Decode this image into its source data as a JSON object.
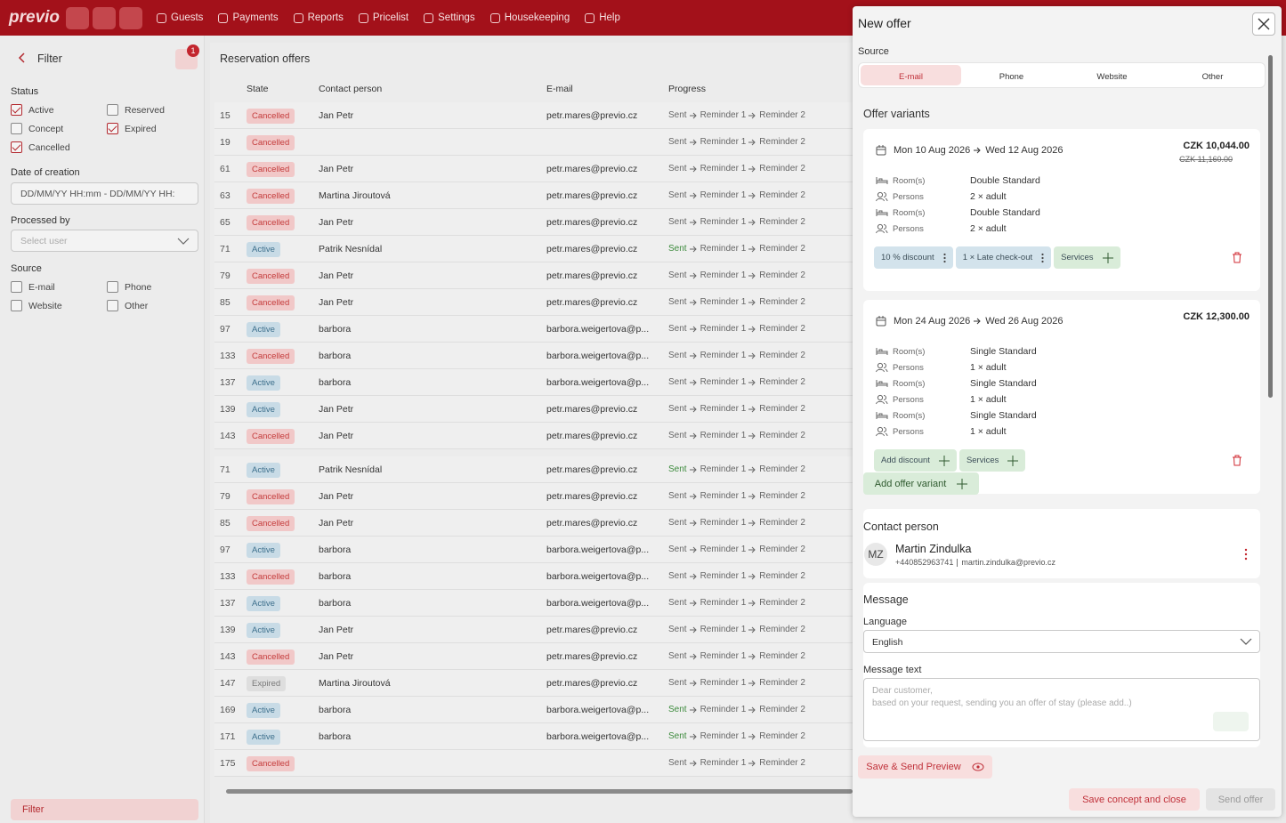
{
  "nav": {
    "logo": "previo",
    "items": [
      "Guests",
      "Payments",
      "Reports",
      "Pricelist",
      "Settings",
      "Housekeeping",
      "Help"
    ]
  },
  "sidebar": {
    "title": "Filter",
    "badge": "1",
    "status_label": "Status",
    "status_options": [
      {
        "label": "Active",
        "checked": true
      },
      {
        "label": "Reserved",
        "checked": false
      },
      {
        "label": "Concept",
        "checked": false
      },
      {
        "label": "Expired",
        "checked": true
      },
      {
        "label": "Cancelled",
        "checked": true
      }
    ],
    "date_label": "Date of creation",
    "date_placeholder": "DD/MM/YY HH:mm  -  DD/MM/YY HH:",
    "processed_label": "Processed by",
    "processed_placeholder": "Select user",
    "source_label": "Source",
    "source_options": [
      {
        "label": "E-mail",
        "checked": false
      },
      {
        "label": "Phone",
        "checked": false
      },
      {
        "label": "Website",
        "checked": false
      },
      {
        "label": "Other",
        "checked": false
      }
    ],
    "filter_button": "Filter"
  },
  "table": {
    "title": "Reservation offers",
    "columns": [
      "State",
      "Contact person",
      "E-mail",
      "Progress"
    ],
    "progress_steps": [
      "Sent",
      "Reminder 1",
      "Reminder 2"
    ],
    "state_styles": {
      "Cancelled": {
        "bg": "#f1c8c8",
        "fg": "#c43b3b"
      },
      "Active": {
        "bg": "#c8dbe6",
        "fg": "#3d6f8c"
      },
      "Expired": {
        "bg": "#dedede",
        "fg": "#7a7a7a"
      }
    },
    "rows": [
      {
        "id": 15,
        "state": "Cancelled",
        "contact": "Jan Petr",
        "email": "petr.mares@previo.cz",
        "sent_done": false
      },
      {
        "id": 19,
        "state": "Cancelled",
        "contact": null,
        "email": null,
        "sent_done": false
      },
      {
        "id": 61,
        "state": "Cancelled",
        "contact": "Jan Petr",
        "email": "petr.mares@previo.cz",
        "sent_done": false
      },
      {
        "id": 63,
        "state": "Cancelled",
        "contact": "Martina Jiroutová",
        "email": "petr.mares@previo.cz",
        "sent_done": false
      },
      {
        "id": 65,
        "state": "Cancelled",
        "contact": "Jan Petr",
        "email": "petr.mares@previo.cz",
        "sent_done": false
      },
      {
        "id": 71,
        "state": "Active",
        "contact": "Patrik Nesnídal",
        "email": "petr.mares@previo.cz",
        "sent_done": true
      },
      {
        "id": 79,
        "state": "Cancelled",
        "contact": "Jan Petr",
        "email": "petr.mares@previo.cz",
        "sent_done": false
      },
      {
        "id": 85,
        "state": "Cancelled",
        "contact": "Jan Petr",
        "email": "petr.mares@previo.cz",
        "sent_done": false
      },
      {
        "id": 97,
        "state": "Active",
        "contact": "barbora",
        "email": "barbora.weigertova@p...",
        "sent_done": false
      },
      {
        "id": 133,
        "state": "Cancelled",
        "contact": "barbora",
        "email": "barbora.weigertova@p...",
        "sent_done": false
      },
      {
        "id": 137,
        "state": "Active",
        "contact": "barbora",
        "email": "barbora.weigertova@p...",
        "sent_done": false
      },
      {
        "id": 139,
        "state": "Active",
        "contact": "Jan Petr",
        "email": "petr.mares@previo.cz",
        "sent_done": false
      },
      {
        "id": 143,
        "state": "Cancelled",
        "contact": "Jan Petr",
        "email": "petr.mares@previo.cz",
        "sent_done": false
      },
      {
        "id": 71,
        "state": "Active",
        "contact": "Patrik Nesnídal",
        "email": "petr.mares@previo.cz",
        "sent_done": true
      },
      {
        "id": 79,
        "state": "Cancelled",
        "contact": "Jan Petr",
        "email": "petr.mares@previo.cz",
        "sent_done": false
      },
      {
        "id": 85,
        "state": "Cancelled",
        "contact": "Jan Petr",
        "email": "petr.mares@previo.cz",
        "sent_done": false
      },
      {
        "id": 97,
        "state": "Active",
        "contact": "barbora",
        "email": "barbora.weigertova@p...",
        "sent_done": false
      },
      {
        "id": 133,
        "state": "Cancelled",
        "contact": "barbora",
        "email": "barbora.weigertova@p...",
        "sent_done": false
      },
      {
        "id": 137,
        "state": "Active",
        "contact": "barbora",
        "email": "barbora.weigertova@p...",
        "sent_done": false
      },
      {
        "id": 139,
        "state": "Active",
        "contact": "Jan Petr",
        "email": "petr.mares@previo.cz",
        "sent_done": false
      },
      {
        "id": 143,
        "state": "Cancelled",
        "contact": "Jan Petr",
        "email": "petr.mares@previo.cz",
        "sent_done": false
      },
      {
        "id": 147,
        "state": "Expired",
        "contact": "Martina Jiroutová",
        "email": "petr.mares@previo.cz",
        "sent_done": false
      },
      {
        "id": 169,
        "state": "Active",
        "contact": "barbora",
        "email": "barbora.weigertova@p...",
        "sent_done": true
      },
      {
        "id": 171,
        "state": "Active",
        "contact": "barbora",
        "email": "barbora.weigertova@p...",
        "sent_done": true
      },
      {
        "id": 175,
        "state": "Cancelled",
        "contact": null,
        "email": null,
        "sent_done": false
      }
    ]
  },
  "panel": {
    "title": "New offer",
    "source_label": "Source",
    "source_tabs": [
      "E-mail",
      "Phone",
      "Website",
      "Other"
    ],
    "source_active": 0,
    "variants_label": "Offer variants",
    "variants": [
      {
        "from": "Mon 10 Aug 2026",
        "to": "Wed 12 Aug 2026",
        "price": "CZK 10,044.00",
        "old_price": "CZK 11,160.00",
        "details": [
          {
            "label": "Room(s)",
            "value": "Double Standard"
          },
          {
            "label": "Persons",
            "value": "2 × adult"
          },
          {
            "label": "Room(s)",
            "value": "Double Standard"
          },
          {
            "label": "Persons",
            "value": "2 × adult"
          }
        ],
        "tags": [
          {
            "label": "10 % discount",
            "color": "#d3e3ec",
            "menu": true
          },
          {
            "label": "1 × Late check-out",
            "color": "#d3e3ec",
            "menu": true
          },
          {
            "label": "Services",
            "color": "#d9ecd9",
            "menu": false
          }
        ]
      },
      {
        "from": "Mon 24 Aug 2026",
        "to": "Wed 26 Aug 2026",
        "price": "CZK 12,300.00",
        "old_price": null,
        "details": [
          {
            "label": "Room(s)",
            "value": "Single Standard"
          },
          {
            "label": "Persons",
            "value": "1 × adult"
          },
          {
            "label": "Room(s)",
            "value": "Single Standard"
          },
          {
            "label": "Persons",
            "value": "1 × adult"
          },
          {
            "label": "Room(s)",
            "value": "Single Standard"
          },
          {
            "label": "Persons",
            "value": "1 × adult"
          }
        ],
        "tags": [
          {
            "label": "Add discount",
            "color": "#d9ecd9",
            "menu": false
          },
          {
            "label": "Services",
            "color": "#d9ecd9",
            "menu": false
          }
        ]
      }
    ],
    "add_variant": "Add offer variant",
    "contact_label": "Contact person",
    "contact": {
      "initials": "MZ",
      "name": "Martin Zindulka",
      "phone": "+440852963741",
      "email": "martin.zindulka@previo.cz"
    },
    "message_label": "Message",
    "language_label": "Language",
    "language": "English",
    "message_text_label": "Message text",
    "message_placeholder": [
      "Dear customer,",
      "based on your request, sending you an offer of stay (please add..)"
    ],
    "preview_button": "Save & Send Preview",
    "save_button": "Save concept and close",
    "send_button": "Send offer"
  }
}
